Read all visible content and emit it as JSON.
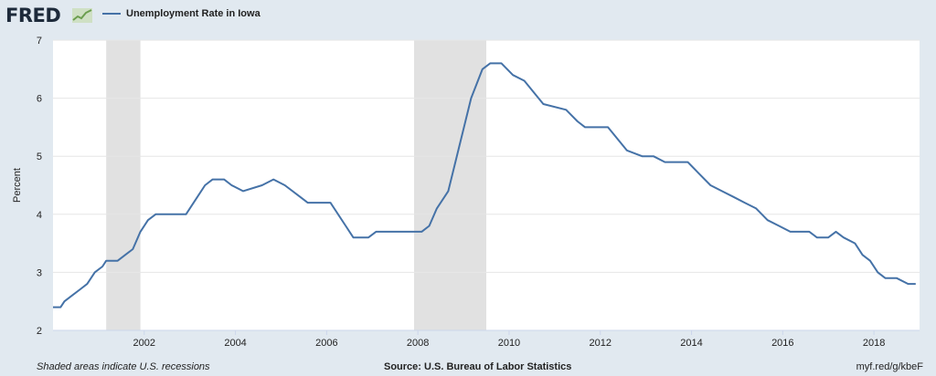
{
  "header": {
    "logo_text": "FRED",
    "logo_icon": "trend-line-icon",
    "legend_label": "Unemployment Rate in Iowa",
    "series_color": "#4572a7"
  },
  "footer": {
    "note": "Shaded areas indicate U.S. recessions",
    "source": "Source: U.S. Bureau of Labor Statistics",
    "url": "myf.red/g/kbeF"
  },
  "chart_data": {
    "type": "line",
    "title": "",
    "xlabel": "",
    "ylabel": "Percent",
    "ylim": [
      2,
      7
    ],
    "xlim": [
      "2000-01",
      "2018-04"
    ],
    "yticks": [
      2,
      3,
      4,
      5,
      6,
      7
    ],
    "xticks": [
      "2002",
      "2004",
      "2006",
      "2008",
      "2010",
      "2012",
      "2014",
      "2016",
      "2018"
    ],
    "grid": true,
    "legend": "top-left",
    "recession_color": "#e1e1e1",
    "recessions": [
      {
        "start": "2001-03",
        "end": "2001-11"
      },
      {
        "start": "2007-12",
        "end": "2009-06"
      }
    ],
    "series": [
      {
        "name": "Unemployment Rate in Iowa",
        "color": "#4572a7",
        "points": [
          [
            "2000-01",
            2.4
          ],
          [
            "2000-03",
            2.4
          ],
          [
            "2000-04",
            2.5
          ],
          [
            "2000-06",
            2.6
          ],
          [
            "2000-08",
            2.7
          ],
          [
            "2000-10",
            2.8
          ],
          [
            "2000-12",
            3.0
          ],
          [
            "2001-02",
            3.1
          ],
          [
            "2001-03",
            3.2
          ],
          [
            "2001-06",
            3.2
          ],
          [
            "2001-08",
            3.3
          ],
          [
            "2001-10",
            3.4
          ],
          [
            "2001-12",
            3.7
          ],
          [
            "2002-02",
            3.9
          ],
          [
            "2002-04",
            4.0
          ],
          [
            "2002-12",
            4.0
          ],
          [
            "2003-03",
            4.3
          ],
          [
            "2003-05",
            4.5
          ],
          [
            "2003-07",
            4.6
          ],
          [
            "2003-10",
            4.6
          ],
          [
            "2003-12",
            4.5
          ],
          [
            "2004-03",
            4.4
          ],
          [
            "2004-08",
            4.5
          ],
          [
            "2004-11",
            4.6
          ],
          [
            "2005-02",
            4.5
          ],
          [
            "2005-06",
            4.3
          ],
          [
            "2005-08",
            4.2
          ],
          [
            "2006-02",
            4.2
          ],
          [
            "2006-06",
            3.8
          ],
          [
            "2006-08",
            3.6
          ],
          [
            "2006-12",
            3.6
          ],
          [
            "2007-02",
            3.7
          ],
          [
            "2008-02",
            3.7
          ],
          [
            "2008-04",
            3.8
          ],
          [
            "2008-06",
            4.1
          ],
          [
            "2008-09",
            4.4
          ],
          [
            "2008-12",
            5.2
          ],
          [
            "2009-03",
            6.0
          ],
          [
            "2009-06",
            6.5
          ],
          [
            "2009-08",
            6.6
          ],
          [
            "2009-11",
            6.6
          ],
          [
            "2010-02",
            6.4
          ],
          [
            "2010-05",
            6.3
          ],
          [
            "2010-10",
            5.9
          ],
          [
            "2011-04",
            5.8
          ],
          [
            "2011-07",
            5.6
          ],
          [
            "2011-09",
            5.5
          ],
          [
            "2012-03",
            5.5
          ],
          [
            "2012-08",
            5.1
          ],
          [
            "2012-12",
            5.0
          ],
          [
            "2013-03",
            5.0
          ],
          [
            "2013-06",
            4.9
          ],
          [
            "2013-12",
            4.9
          ],
          [
            "2014-03",
            4.7
          ],
          [
            "2014-06",
            4.5
          ],
          [
            "2014-09",
            4.4
          ],
          [
            "2014-12",
            4.3
          ],
          [
            "2015-03",
            4.2
          ],
          [
            "2015-06",
            4.1
          ],
          [
            "2015-09",
            3.9
          ],
          [
            "2015-12",
            3.8
          ],
          [
            "2016-03",
            3.7
          ],
          [
            "2016-08",
            3.7
          ],
          [
            "2016-10",
            3.6
          ],
          [
            "2017-01",
            3.6
          ],
          [
            "2017-03",
            3.7
          ],
          [
            "2017-05",
            3.6
          ],
          [
            "2017-08",
            3.5
          ],
          [
            "2017-10",
            3.3
          ],
          [
            "2017-12",
            3.2
          ],
          [
            "2018-02",
            3.0
          ],
          [
            "2018-04",
            2.9
          ],
          [
            "2018-07",
            2.9
          ],
          [
            "2018-10",
            2.8
          ],
          [
            "2018-12",
            2.8
          ]
        ]
      }
    ]
  }
}
